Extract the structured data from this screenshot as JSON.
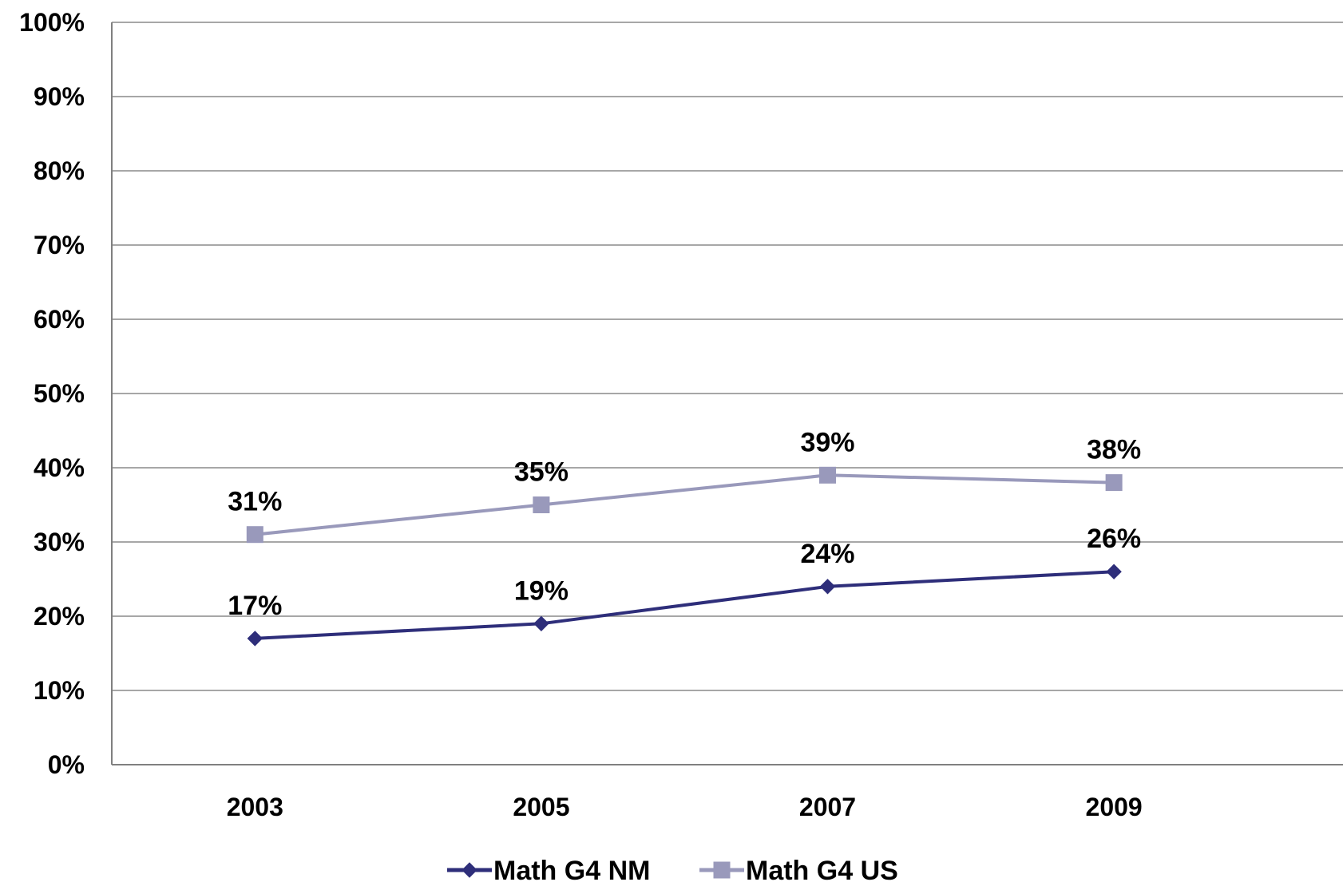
{
  "chart_data": {
    "type": "line",
    "title": "",
    "xlabel": "",
    "ylabel": "",
    "categories": [
      "2003",
      "2005",
      "2007",
      "2009"
    ],
    "ylim": [
      0,
      100
    ],
    "y_ticks": [
      0,
      10,
      20,
      30,
      40,
      50,
      60,
      70,
      80,
      90,
      100
    ],
    "y_tick_labels": [
      "0%",
      "10%",
      "20%",
      "30%",
      "40%",
      "50%",
      "60%",
      "70%",
      "80%",
      "90%",
      "100%"
    ],
    "grid": "horizontal",
    "legend_position": "bottom",
    "series": [
      {
        "name": "Math G4 NM",
        "values": [
          17,
          19,
          24,
          26
        ],
        "labels": [
          "17%",
          "19%",
          "24%",
          "26%"
        ],
        "color": "#2e2e7a",
        "marker": "diamond"
      },
      {
        "name": "Math G4 US",
        "values": [
          31,
          35,
          39,
          38
        ],
        "labels": [
          "31%",
          "35%",
          "39%",
          "38%"
        ],
        "color": "#9999bb",
        "marker": "square"
      }
    ]
  }
}
